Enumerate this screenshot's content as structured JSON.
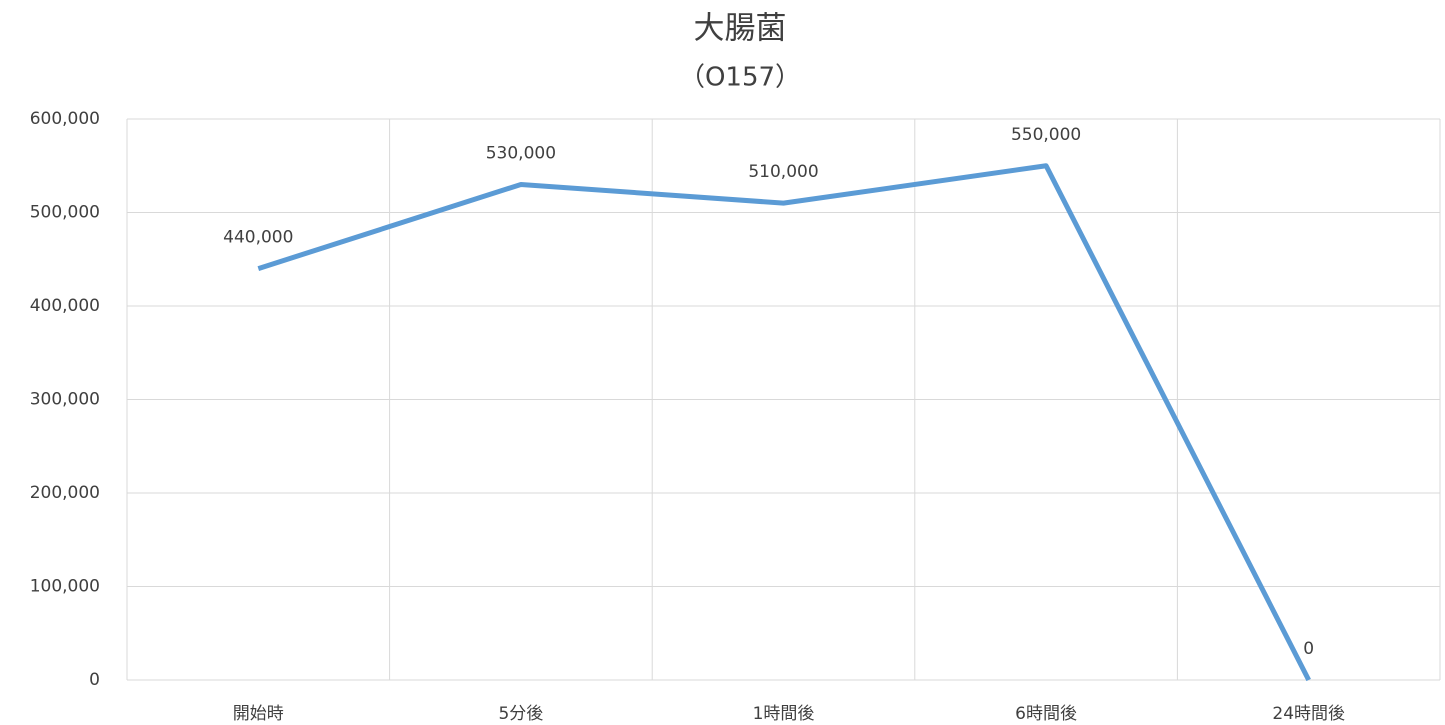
{
  "chart_data": {
    "type": "line",
    "title": "大腸菌",
    "subtitle": "（O157）",
    "categories": [
      "開始時",
      "5分後",
      "1時間後",
      "6時間後",
      "24時間後"
    ],
    "series": [
      {
        "name": "大腸菌",
        "color": "#5b9bd5",
        "values": [
          440000,
          530000,
          510000,
          550000,
          0
        ],
        "value_labels": [
          "440,000",
          "530,000",
          "510,000",
          "550,000",
          "0"
        ]
      }
    ],
    "ylim": [
      0,
      600000
    ],
    "yticks": [
      0,
      {
        "value": 100000,
        "label": "100,000"
      },
      {
        "value": 200000,
        "label": "200,000"
      },
      {
        "value": 300000,
        "label": "300,000"
      },
      {
        "value": 400000,
        "label": "400,000"
      },
      {
        "value": 500000,
        "label": "500,000"
      },
      {
        "value": 600000,
        "label": "600,000"
      }
    ],
    "grid": true
  }
}
